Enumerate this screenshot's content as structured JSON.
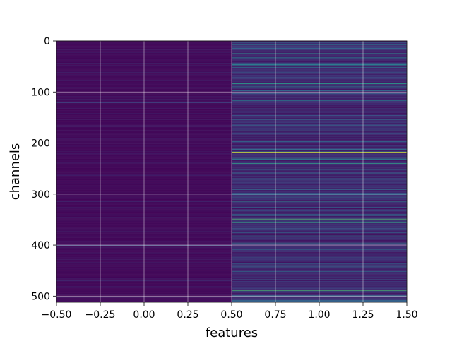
{
  "chart_data": {
    "type": "heatmap",
    "title": "",
    "xlabel": "features",
    "ylabel": "channels",
    "xlim": [
      -0.5,
      1.5
    ],
    "ylim": [
      512,
      0
    ],
    "x_ticks": [
      -0.5,
      -0.25,
      0.0,
      0.25,
      0.5,
      0.75,
      1.0,
      1.25,
      1.5
    ],
    "x_tick_labels": [
      "−0.50",
      "−0.25",
      "0.00",
      "0.25",
      "0.50",
      "0.75",
      "1.00",
      "1.25",
      "1.50"
    ],
    "y_ticks": [
      0,
      100,
      200,
      300,
      400,
      500
    ],
    "y_tick_labels": [
      "0",
      "100",
      "200",
      "300",
      "400",
      "500"
    ],
    "grid": true,
    "colormap": "viridis",
    "columns": [
      0,
      1
    ],
    "rows": 512,
    "columns_data": [
      {
        "feature": 0,
        "base_level": 0.03,
        "highlights": [
          {
            "row": 44,
            "value": 0.12
          },
          {
            "row": 121,
            "value": 0.22
          },
          {
            "row": 133,
            "value": 0.18
          },
          {
            "row": 190,
            "value": 0.12
          },
          {
            "row": 263,
            "value": 0.14
          },
          {
            "row": 315,
            "value": 0.12
          },
          {
            "row": 401,
            "value": 0.25
          },
          {
            "row": 470,
            "value": 0.15
          },
          {
            "row": 497,
            "value": 0.14
          }
        ]
      },
      {
        "feature": 1,
        "base_level": 0.12,
        "highlights": [
          {
            "row": 8,
            "value": 0.4
          },
          {
            "row": 14,
            "value": 0.28
          },
          {
            "row": 25,
            "value": 0.55
          },
          {
            "row": 33,
            "value": 0.45
          },
          {
            "row": 47,
            "value": 0.5
          },
          {
            "row": 52,
            "value": 0.35
          },
          {
            "row": 62,
            "value": 0.3
          },
          {
            "row": 72,
            "value": 0.28
          },
          {
            "row": 84,
            "value": 0.55
          },
          {
            "row": 90,
            "value": 0.45
          },
          {
            "row": 103,
            "value": 0.3
          },
          {
            "row": 117,
            "value": 0.42
          },
          {
            "row": 133,
            "value": 0.3
          },
          {
            "row": 146,
            "value": 0.28
          },
          {
            "row": 165,
            "value": 0.35
          },
          {
            "row": 176,
            "value": 0.5
          },
          {
            "row": 186,
            "value": 0.45
          },
          {
            "row": 197,
            "value": 0.35
          },
          {
            "row": 210,
            "value": 0.3
          },
          {
            "row": 218,
            "value": 0.95
          },
          {
            "row": 231,
            "value": 0.45
          },
          {
            "row": 240,
            "value": 0.55
          },
          {
            "row": 247,
            "value": 0.3
          },
          {
            "row": 259,
            "value": 0.35
          },
          {
            "row": 270,
            "value": 0.3
          },
          {
            "row": 285,
            "value": 0.28
          },
          {
            "row": 298,
            "value": 0.3
          },
          {
            "row": 308,
            "value": 0.45
          },
          {
            "row": 314,
            "value": 0.55
          },
          {
            "row": 326,
            "value": 0.3
          },
          {
            "row": 340,
            "value": 0.35
          },
          {
            "row": 349,
            "value": 0.7
          },
          {
            "row": 356,
            "value": 0.55
          },
          {
            "row": 368,
            "value": 0.3
          },
          {
            "row": 382,
            "value": 0.35
          },
          {
            "row": 396,
            "value": 0.4
          },
          {
            "row": 412,
            "value": 0.3
          },
          {
            "row": 425,
            "value": 0.35
          },
          {
            "row": 440,
            "value": 0.3
          },
          {
            "row": 452,
            "value": 0.35
          },
          {
            "row": 468,
            "value": 0.4
          },
          {
            "row": 478,
            "value": 0.3
          },
          {
            "row": 489,
            "value": 0.65
          },
          {
            "row": 499,
            "value": 0.35
          },
          {
            "row": 508,
            "value": 0.3
          }
        ]
      }
    ]
  }
}
